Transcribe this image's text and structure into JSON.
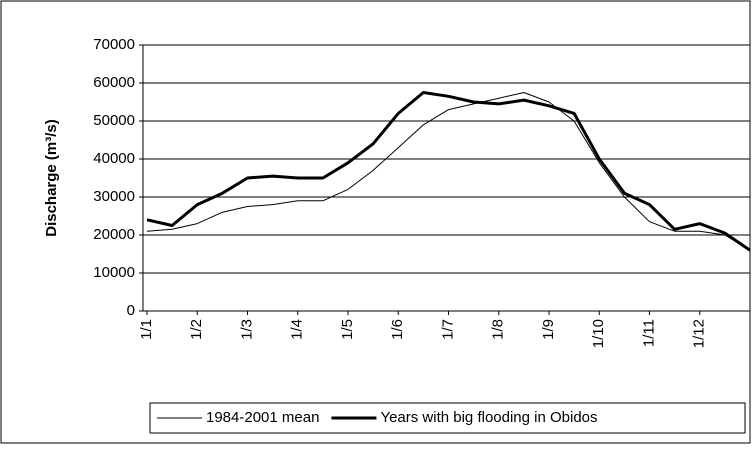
{
  "chart_data": {
    "type": "line",
    "y_label": "Discharge (m³/s)",
    "categories": [
      "1/1",
      null,
      "1/2",
      null,
      "1/3",
      null,
      "1/4",
      null,
      "1/5",
      null,
      "1/6",
      null,
      "1/7",
      null,
      "1/8",
      null,
      "1/9",
      null,
      "1/10",
      null,
      "1/11",
      null,
      "1/12",
      null,
      null
    ],
    "series": [
      {
        "name": "1984-2001 mean",
        "color": "#000000",
        "width": 1,
        "values": [
          21000,
          21500,
          23000,
          26000,
          27500,
          28000,
          29000,
          29000,
          32000,
          37000,
          43000,
          49000,
          53000,
          54500,
          56000,
          57500,
          55000,
          50000,
          39000,
          30000,
          23500,
          21000,
          21000,
          20000,
          16000
        ]
      },
      {
        "name": "Years with big flooding in Obidos",
        "color": "#000000",
        "width": 3,
        "values": [
          24000,
          22500,
          28000,
          31000,
          35000,
          35500,
          35000,
          35000,
          39000,
          44000,
          52000,
          57500,
          56500,
          55000,
          54500,
          55500,
          54000,
          52000,
          40000,
          31000,
          28000,
          21500,
          23000,
          20500,
          16000
        ]
      }
    ],
    "ylim": [
      0,
      70000
    ],
    "yticks": [
      0,
      10000,
      20000,
      30000,
      40000,
      50000,
      60000,
      70000
    ],
    "grid": true,
    "legend": "bottom"
  }
}
